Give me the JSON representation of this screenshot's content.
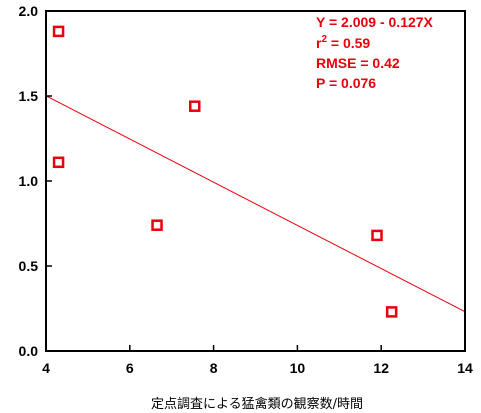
{
  "chart_data": {
    "type": "scatter",
    "xlabel": "定点調査による猛禽類の観察数/時間",
    "ylabel": "",
    "xlim": [
      4,
      14
    ],
    "ylim": [
      0.0,
      2.0
    ],
    "x_ticks": [
      "4",
      "6",
      "8",
      "10",
      "12",
      "14"
    ],
    "y_ticks": [
      "0.0",
      "0.5",
      "1.0",
      "1.5",
      "2.0"
    ],
    "grid": false,
    "points": [
      {
        "x": 4.3,
        "y": 1.88
      },
      {
        "x": 4.3,
        "y": 1.11
      },
      {
        "x": 6.65,
        "y": 0.74
      },
      {
        "x": 7.55,
        "y": 1.44
      },
      {
        "x": 11.9,
        "y": 0.68
      },
      {
        "x": 12.25,
        "y": 0.23
      }
    ],
    "regression": {
      "intercept": 2.009,
      "slope": -0.127
    },
    "annotations": {
      "equation": "Y = 2.009 - 0.127X",
      "r2_prefix": "r",
      "r2_sup": "2",
      "r2_value": " = 0.59",
      "rmse": "RMSE = 0.42",
      "p_value": "P = 0.076"
    },
    "colors": {
      "marker": "#e8000b",
      "line": "#e8000b",
      "axes": "#000000"
    }
  }
}
